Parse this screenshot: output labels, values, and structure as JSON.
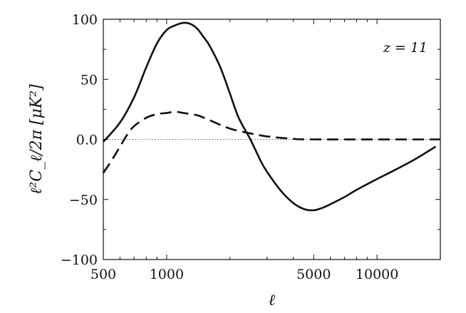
{
  "chart_data": {
    "type": "line",
    "title": "",
    "xlabel": "ℓ",
    "ylabel": "ℓ²C_ℓ/2π  [μK²]",
    "xscale": "log",
    "xlim": [
      500,
      20000
    ],
    "ylim": [
      -100,
      100
    ],
    "xticks": [
      500,
      1000,
      5000,
      10000
    ],
    "xtick_labels": [
      "500",
      "1000",
      "5000",
      "10000"
    ],
    "yticks": [
      100,
      50,
      0,
      -50,
      -100
    ],
    "ytick_labels": [
      "100",
      "50",
      "0.0",
      "−50",
      "−100"
    ],
    "annotation": "z = 11",
    "zero_line": true,
    "grid": false,
    "series": [
      {
        "style": "solid",
        "color": "#111111",
        "points": [
          [
            500,
            -2
          ],
          [
            600,
            14
          ],
          [
            700,
            35
          ],
          [
            800,
            60
          ],
          [
            900,
            80
          ],
          [
            1000,
            91
          ],
          [
            1100,
            95
          ],
          [
            1200,
            97
          ],
          [
            1300,
            96
          ],
          [
            1400,
            92
          ],
          [
            1500,
            85
          ],
          [
            1600,
            78
          ],
          [
            1800,
            60
          ],
          [
            2000,
            38
          ],
          [
            2200,
            18
          ],
          [
            2500,
            0
          ],
          [
            2800,
            -18
          ],
          [
            3000,
            -27
          ],
          [
            3500,
            -43
          ],
          [
            4000,
            -53
          ],
          [
            4500,
            -58
          ],
          [
            5000,
            -59
          ],
          [
            5500,
            -57
          ],
          [
            6000,
            -54
          ],
          [
            7000,
            -48
          ],
          [
            8000,
            -42
          ],
          [
            10000,
            -33
          ],
          [
            12000,
            -26
          ],
          [
            15000,
            -17
          ],
          [
            19000,
            -6
          ]
        ]
      },
      {
        "style": "dashed",
        "color": "#111111",
        "points": [
          [
            500,
            -28
          ],
          [
            550,
            -17
          ],
          [
            600,
            -6
          ],
          [
            650,
            4
          ],
          [
            700,
            11
          ],
          [
            800,
            18
          ],
          [
            900,
            21
          ],
          [
            1000,
            22
          ],
          [
            1100,
            23
          ],
          [
            1200,
            22
          ],
          [
            1400,
            20
          ],
          [
            1600,
            16
          ],
          [
            2000,
            9
          ],
          [
            2500,
            5
          ],
          [
            3000,
            2.5
          ],
          [
            4000,
            0.5
          ],
          [
            5000,
            0
          ],
          [
            20000,
            0
          ]
        ]
      }
    ]
  }
}
